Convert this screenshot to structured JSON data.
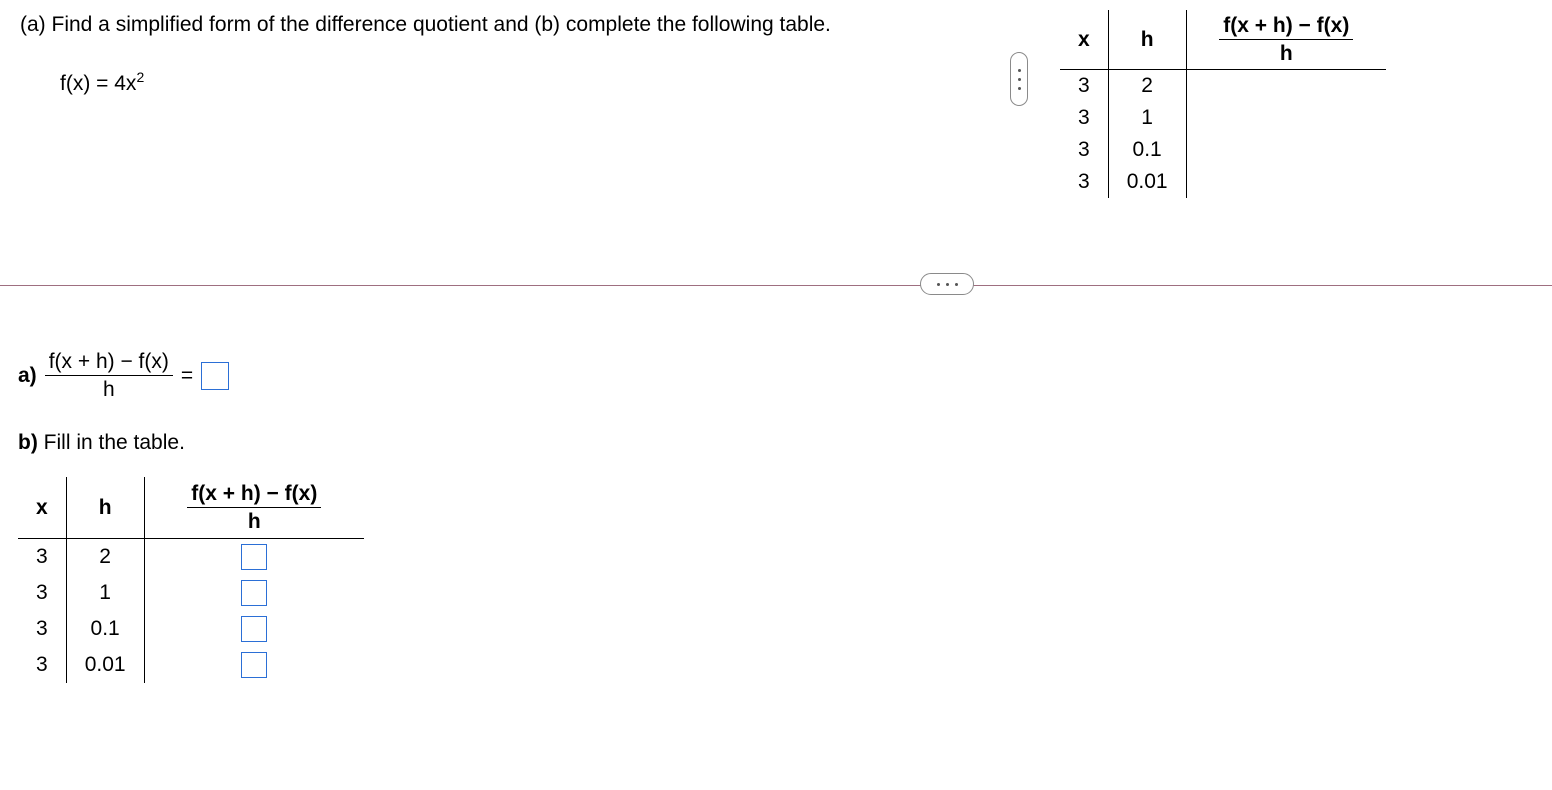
{
  "instruction": "(a) Find a simplified form of the difference quotient and (b) complete the following table.",
  "function_label": "f(x) = 4x",
  "function_exponent": "2",
  "diff_quotient_numerator": "f(x + h) − f(x)",
  "diff_quotient_denominator": "h",
  "equals_sign": " = ",
  "part_a_label": "a)",
  "part_b_label_bold": "b)",
  "part_b_label_rest": " Fill in the table.",
  "headers": {
    "x": "x",
    "h": "h"
  },
  "ref_table": {
    "rows": [
      {
        "x": "3",
        "h": "2"
      },
      {
        "x": "3",
        "h": "1"
      },
      {
        "x": "3",
        "h": "0.1"
      },
      {
        "x": "3",
        "h": "0.01"
      }
    ]
  },
  "ans_table": {
    "rows": [
      {
        "x": "3",
        "h": "2"
      },
      {
        "x": "3",
        "h": "1"
      },
      {
        "x": "3",
        "h": "0.1"
      },
      {
        "x": "3",
        "h": "0.01"
      }
    ]
  },
  "colors": {
    "input_border": "#2b6fd6",
    "divider": "#9e6f80",
    "pill_border": "#8a8a8a",
    "dot": "#555555",
    "text": "#000000",
    "background": "#ffffff"
  }
}
